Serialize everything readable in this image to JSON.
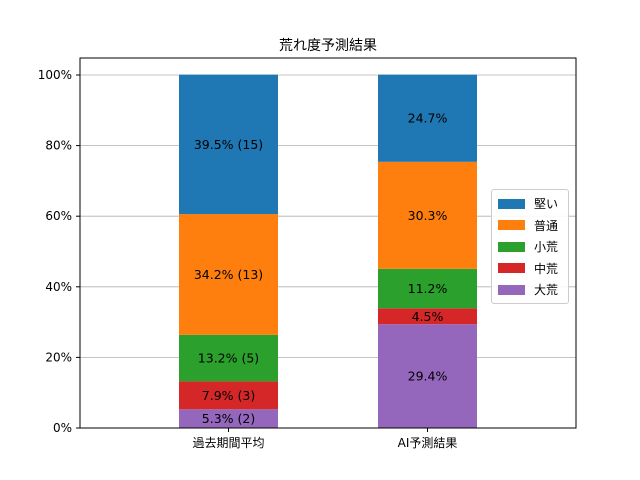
{
  "chart_data": {
    "type": "bar",
    "stacked": true,
    "title": "荒れ度予測結果",
    "xlabel": "",
    "ylabel": "",
    "categories": [
      "過去期間平均",
      "AI予測結果"
    ],
    "ylim": [
      0,
      100
    ],
    "yticks": [
      "0%",
      "20%",
      "40%",
      "60%",
      "80%",
      "100%"
    ],
    "grid": "y",
    "legend_position": "center-right",
    "series": [
      {
        "name": "大荒",
        "color": "#9467bd",
        "values": [
          5.3,
          29.4
        ],
        "labels": [
          "5.3% (2)",
          "29.4%"
        ]
      },
      {
        "name": "中荒",
        "color": "#d62728",
        "values": [
          7.9,
          4.5
        ],
        "labels": [
          "7.9% (3)",
          "4.5%"
        ]
      },
      {
        "name": "小荒",
        "color": "#2ca02c",
        "values": [
          13.2,
          11.2
        ],
        "labels": [
          "13.2% (5)",
          "11.2%"
        ]
      },
      {
        "name": "普通",
        "color": "#ff7f0e",
        "values": [
          34.2,
          30.3
        ],
        "labels": [
          "34.2% (13)",
          "30.3%"
        ]
      },
      {
        "name": "堅い",
        "color": "#1f77b4",
        "values": [
          39.5,
          24.7
        ],
        "labels": [
          "39.5% (15)",
          "24.7%"
        ]
      }
    ],
    "legend_order": [
      "堅い",
      "普通",
      "小荒",
      "中荒",
      "大荒"
    ]
  }
}
